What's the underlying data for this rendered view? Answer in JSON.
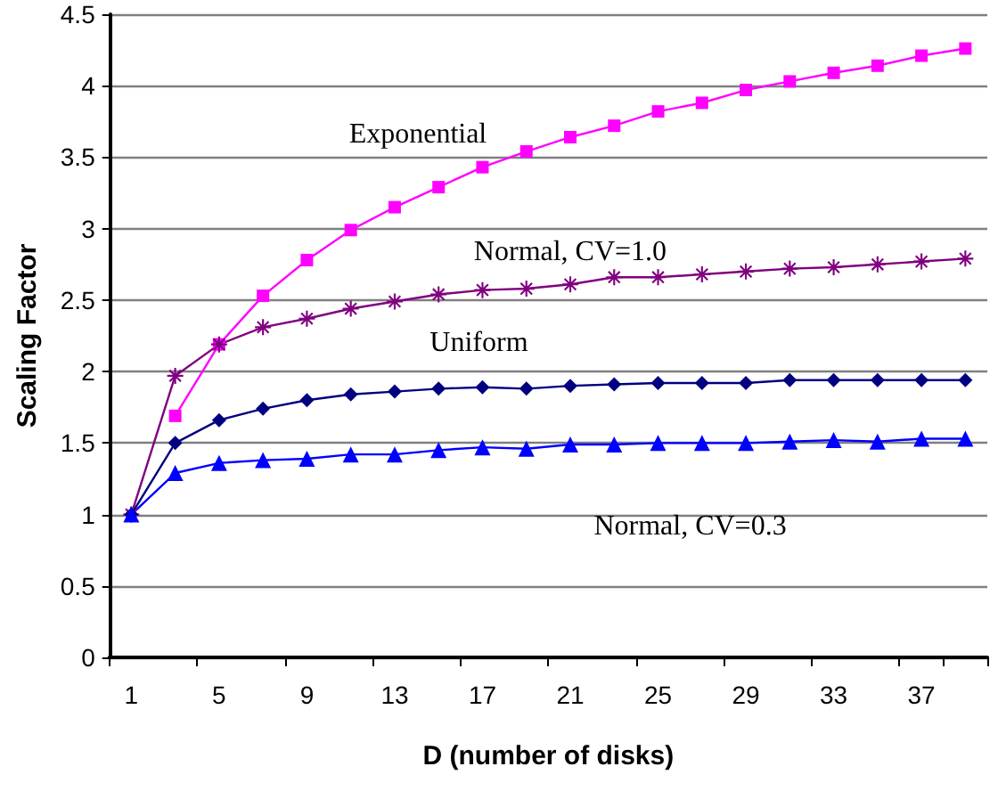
{
  "chart_data": {
    "type": "line",
    "xlabel": "D (number of disks)",
    "ylabel": "Scaling Factor",
    "categories": [
      "1",
      null,
      "5",
      null,
      "9",
      null,
      "13",
      null,
      "17",
      null,
      "21",
      null,
      "25",
      null,
      "29",
      null,
      "33",
      null,
      "37",
      null
    ],
    "series": [
      {
        "name": "Exponential",
        "color": "#ff00ff",
        "marker": "square",
        "values": [
          null,
          1.69,
          2.19,
          2.53,
          2.78,
          2.99,
          3.15,
          3.29,
          3.43,
          3.54,
          3.64,
          3.72,
          3.82,
          3.88,
          3.97,
          4.03,
          4.09,
          4.14,
          4.21,
          4.26
        ]
      },
      {
        "name": "Normal, CV=1.0",
        "color": "#800080",
        "marker": "cross",
        "values": [
          1.0,
          1.97,
          2.19,
          2.31,
          2.37,
          2.44,
          2.49,
          2.54,
          2.57,
          2.58,
          2.61,
          2.66,
          2.66,
          2.68,
          2.7,
          2.72,
          2.73,
          2.75,
          2.77,
          2.79
        ]
      },
      {
        "name": "Uniform",
        "color": "#000080",
        "marker": "diamond",
        "values": [
          1.0,
          1.5,
          1.66,
          1.74,
          1.8,
          1.84,
          1.86,
          1.88,
          1.89,
          1.88,
          1.9,
          1.91,
          1.92,
          1.92,
          1.92,
          1.94,
          1.94,
          1.94,
          1.94,
          1.94
        ]
      },
      {
        "name": "Normal, CV=0.3",
        "color": "#0000ff",
        "marker": "triangle",
        "values": [
          1.0,
          1.29,
          1.36,
          1.38,
          1.39,
          1.42,
          1.42,
          1.45,
          1.47,
          1.46,
          1.49,
          1.49,
          1.5,
          1.5,
          1.5,
          1.51,
          1.52,
          1.51,
          1.53,
          1.53
        ]
      }
    ],
    "ylim": [
      0,
      4.5
    ],
    "yticks": [
      0,
      0.5,
      1,
      1.5,
      2,
      2.5,
      3,
      3.5,
      4,
      4.5
    ],
    "grid": "y",
    "legend": false,
    "line_style": "solid"
  }
}
